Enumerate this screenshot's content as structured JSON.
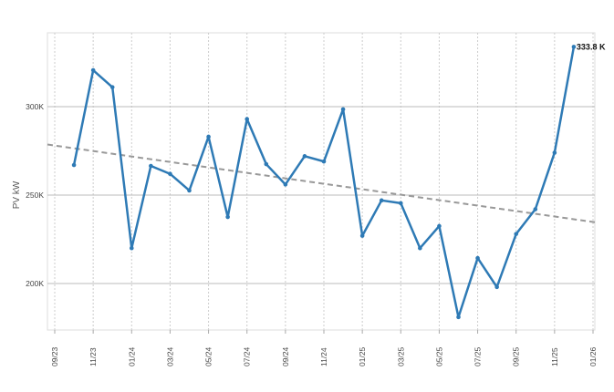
{
  "chart_data": {
    "type": "line",
    "ylabel": "PV kW",
    "xlabel": "",
    "ylim": [
      173000,
      342000
    ],
    "xlim": [
      "2023-09",
      "2026-01"
    ],
    "grid": true,
    "y_ticks": [
      {
        "value": 200000,
        "label": "200K"
      },
      {
        "value": 250000,
        "label": "250K"
      },
      {
        "value": 300000,
        "label": "300K"
      }
    ],
    "x_ticks": [
      "09/23",
      "11/23",
      "01/24",
      "03/24",
      "05/24",
      "07/24",
      "09/24",
      "11/24",
      "01/25",
      "03/25",
      "05/25",
      "07/25",
      "09/25",
      "11/25",
      "01/26"
    ],
    "series": [
      {
        "color": "#2e7ab5",
        "x": [
          "2023-10",
          "2023-11",
          "2023-12",
          "2024-01",
          "2024-02",
          "2024-03",
          "2024-04",
          "2024-05",
          "2024-06",
          "2024-07",
          "2024-08",
          "2024-09",
          "2024-10",
          "2024-11",
          "2024-12",
          "2025-01",
          "2025-02",
          "2025-03",
          "2025-04",
          "2025-05",
          "2025-06",
          "2025-07",
          "2025-08",
          "2025-09",
          "2025-10",
          "2025-11",
          "2025-12"
        ],
        "values": [
          267000,
          320600,
          311000,
          220000,
          266500,
          262000,
          252600,
          283000,
          237600,
          293000,
          267500,
          256000,
          272000,
          269000,
          298500,
          227000,
          247000,
          245400,
          220000,
          232500,
          181000,
          214400,
          198000,
          228000,
          242000,
          274000,
          333800
        ]
      }
    ],
    "trendline": {
      "color": "#999999",
      "style": "dashed",
      "x": [
        "2023-09",
        "2026-01"
      ],
      "values": [
        278000,
        234800
      ]
    },
    "annotations": [
      {
        "x": "2025-12",
        "value": 333800,
        "label": "333.8 K"
      }
    ]
  }
}
